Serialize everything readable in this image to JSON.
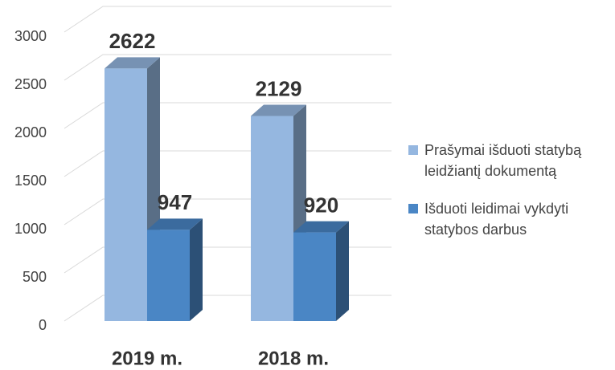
{
  "chart_data": {
    "type": "bar3d",
    "categories": [
      "2019 m.",
      "2018 m."
    ],
    "series": [
      {
        "name": "Prašymai išduoti statybą leidžiantį dokumentą",
        "color": "#95b7e0",
        "values": [
          2622,
          2129
        ]
      },
      {
        "name": "Išduoti leidimai vykdyti statybos darbus",
        "color": "#4a86c5",
        "values": [
          947,
          920
        ]
      }
    ],
    "ylim": [
      0,
      3000
    ],
    "yticks": [
      0,
      500,
      1000,
      1500,
      2000,
      2500,
      3000
    ],
    "grid": true,
    "legend": "right"
  }
}
